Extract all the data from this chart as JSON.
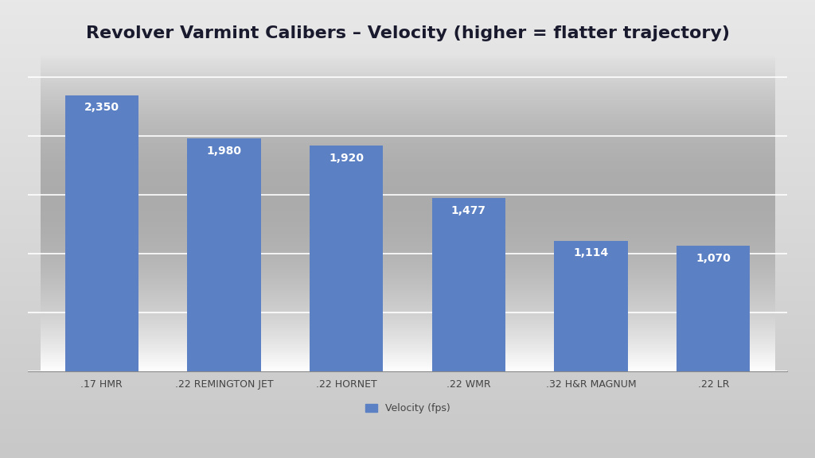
{
  "title": "Revolver Varmint Calibers – Velocity (higher = flatter trajectory)",
  "categories": [
    ".17 HMR",
    ".22 REMINGTON JET",
    ".22 HORNET",
    ".22 WMR",
    ".32 H&R MAGNUM",
    ".22 LR"
  ],
  "values": [
    2350,
    1980,
    1920,
    1477,
    1114,
    1070
  ],
  "bar_color": "#5b80c4",
  "value_labels": [
    "2,350",
    "1,980",
    "1,920",
    "1,477",
    "1,114",
    "1,070"
  ],
  "legend_label": "Velocity (fps)",
  "ylim": [
    0,
    2700
  ],
  "title_fontsize": 16,
  "label_fontsize": 10,
  "tick_fontsize": 9,
  "legend_fontsize": 9,
  "fig_bg_top": "#e8e8e8",
  "fig_bg_bottom": "#c8c8c8",
  "plot_bg_top": "#e0e2e8",
  "plot_bg_bottom": "#c8cad2",
  "grid_color": "#ffffff",
  "bar_width": 0.6,
  "ytick_step": 500
}
